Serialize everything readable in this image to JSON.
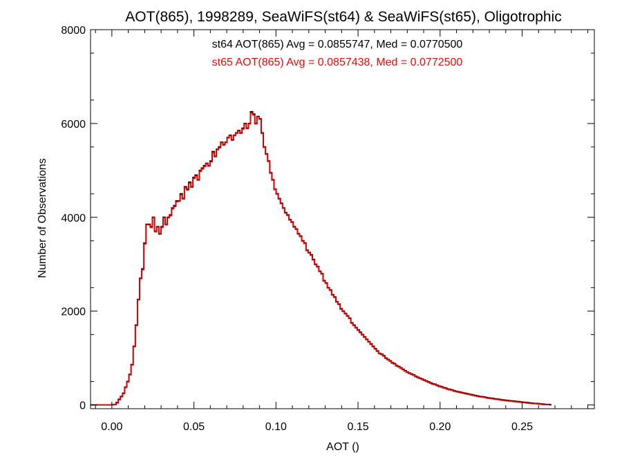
{
  "chart_data": {
    "type": "histogram",
    "title": "AOT(865), 1998289, SeaWiFS(st64) & SeaWiFS(st65), Oligotrophic",
    "xlabel": "AOT ()",
    "ylabel": "Number of Observations",
    "xlim": [
      -0.013,
      0.294
    ],
    "ylim": [
      -80,
      8000
    ],
    "x_ticks": [
      0.0,
      0.05,
      0.1,
      0.15,
      0.2,
      0.25
    ],
    "x_tick_labels": [
      "0.00",
      "0.05",
      "0.10",
      "0.15",
      "0.20",
      "0.25"
    ],
    "y_ticks": [
      0,
      2000,
      4000,
      6000,
      8000
    ],
    "y_tick_labels": [
      "0",
      "2000",
      "4000",
      "6000",
      "8000"
    ],
    "grid": false,
    "annotations": [
      {
        "text": "st64 AOT(865) Avg = 0.0855747, Med = 0.0770500",
        "color": "#000000"
      },
      {
        "text": "st65 AOT(865) Avg = 0.0857438, Med = 0.0772500",
        "color": "#ff0000"
      }
    ],
    "bin_width": 0.0013,
    "series": [
      {
        "color": "#000000",
        "x_start": -0.013,
        "values": [
          0,
          0,
          0,
          0,
          0,
          0,
          0,
          0,
          0,
          0,
          5,
          10,
          50,
          120,
          180,
          250,
          380,
          500,
          650,
          860,
          1250,
          1700,
          2250,
          2700,
          2900,
          3450,
          3850,
          3850,
          3800,
          4000,
          3700,
          3800,
          3650,
          3800,
          4000,
          3850,
          4000,
          4050,
          4200,
          4250,
          4350,
          4350,
          4500,
          4400,
          4650,
          4600,
          4750,
          4650,
          4850,
          4900,
          4800,
          5000,
          5050,
          5100,
          5150,
          5100,
          5200,
          5400,
          5300,
          5450,
          5500,
          5600,
          5550,
          5600,
          5700,
          5750,
          5650,
          5750,
          5800,
          5850,
          5800,
          5900,
          6000,
          5900,
          6000,
          6250,
          6200,
          6000,
          6150,
          6100,
          5800,
          5500,
          5350,
          5200,
          4950,
          4800,
          4600,
          4500,
          4400,
          4300,
          4200,
          4100,
          4050,
          3950,
          3900,
          3800,
          3750,
          3650,
          3600,
          3500,
          3450,
          3300,
          3250,
          3200,
          3100,
          3000,
          2950,
          2850,
          2800,
          2650,
          2600,
          2500,
          2450,
          2350,
          2300,
          2200,
          2150,
          2050,
          2000,
          1950,
          1900,
          1850,
          1750,
          1700,
          1650,
          1600,
          1550,
          1500,
          1450,
          1400,
          1350,
          1300,
          1250,
          1200,
          1150,
          1100,
          1080,
          1050,
          1000,
          970,
          940,
          900,
          880,
          840,
          820,
          790,
          760,
          730,
          700,
          680,
          660,
          640,
          610,
          590,
          570,
          550,
          530,
          510,
          490,
          470,
          450,
          440,
          420,
          400,
          390,
          370,
          360,
          340,
          330,
          320,
          300,
          290,
          280,
          270,
          260,
          250,
          240,
          230,
          220,
          210,
          200,
          190,
          180,
          175,
          170,
          160,
          150,
          145,
          140,
          130,
          125,
          120,
          110,
          105,
          100,
          95,
          90,
          85,
          80,
          75,
          70,
          65,
          60,
          55,
          50,
          45,
          40,
          35,
          30,
          30,
          25,
          20,
          15,
          10,
          10,
          5
        ]
      },
      {
        "color": "#ff0000",
        "x_start": -0.013,
        "values": [
          0,
          0,
          0,
          0,
          0,
          0,
          0,
          0,
          0,
          0,
          5,
          10,
          40,
          110,
          170,
          240,
          370,
          490,
          640,
          850,
          1240,
          1690,
          2240,
          2690,
          2880,
          3430,
          3840,
          3840,
          3780,
          3990,
          3690,
          3790,
          3640,
          3780,
          3990,
          3840,
          3990,
          4030,
          4180,
          4230,
          4330,
          4340,
          4480,
          4390,
          4630,
          4580,
          4730,
          4640,
          4830,
          4880,
          4790,
          4980,
          5030,
          5080,
          5140,
          5090,
          5180,
          5380,
          5290,
          5440,
          5480,
          5590,
          5540,
          5590,
          5690,
          5740,
          5640,
          5740,
          5790,
          5840,
          5790,
          5880,
          5990,
          5890,
          5990,
          6220,
          6180,
          5990,
          6140,
          6090,
          5790,
          5490,
          5340,
          5190,
          4940,
          4790,
          4590,
          4490,
          4390,
          4290,
          4190,
          4090,
          4040,
          3940,
          3890,
          3790,
          3740,
          3640,
          3590,
          3490,
          3440,
          3290,
          3240,
          3190,
          3090,
          2990,
          2940,
          2840,
          2790,
          2640,
          2590,
          2490,
          2440,
          2340,
          2290,
          2190,
          2140,
          2040,
          1990,
          1940,
          1890,
          1840,
          1740,
          1690,
          1640,
          1590,
          1540,
          1490,
          1440,
          1390,
          1340,
          1290,
          1240,
          1190,
          1140,
          1090,
          1070,
          1040,
          990,
          960,
          930,
          890,
          870,
          830,
          810,
          780,
          750,
          720,
          690,
          670,
          650,
          630,
          600,
          580,
          560,
          540,
          520,
          500,
          480,
          460,
          440,
          430,
          410,
          390,
          380,
          360,
          350,
          330,
          320,
          310,
          290,
          280,
          270,
          260,
          250,
          240,
          230,
          220,
          210,
          200,
          190,
          180,
          170,
          165,
          160,
          150,
          140,
          135,
          130,
          120,
          115,
          110,
          100,
          95,
          90,
          85,
          80,
          75,
          70,
          65,
          60,
          55,
          50,
          45,
          40,
          35,
          30,
          25,
          25,
          20,
          15,
          10,
          5,
          5,
          5
        ]
      }
    ]
  }
}
